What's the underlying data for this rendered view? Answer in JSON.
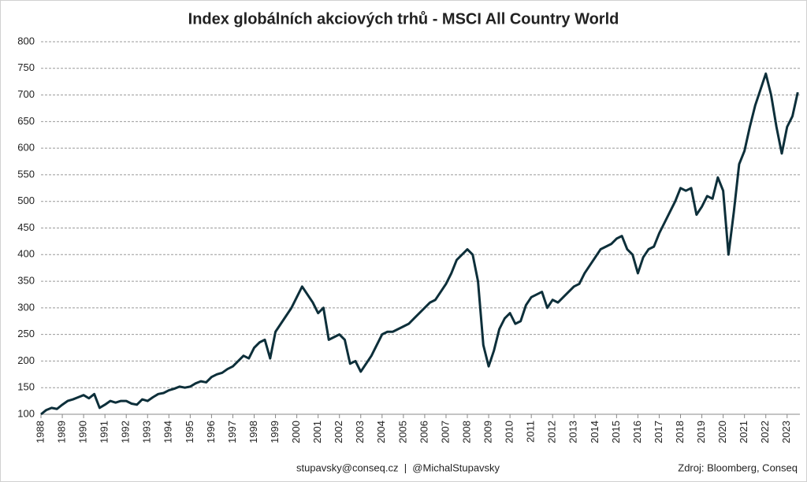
{
  "chart_data": {
    "type": "line",
    "title": "Index globálních akciových trhů - MSCI All Country World",
    "footer": "stupavsky@conseq.cz  |  @MichalStupavsky",
    "source": "Zdroj: Bloomberg, Conseq",
    "x": [
      1988,
      1988.25,
      1988.5,
      1988.75,
      1989,
      1989.25,
      1989.5,
      1989.75,
      1990,
      1990.25,
      1990.5,
      1990.75,
      1991,
      1991.25,
      1991.5,
      1991.75,
      1992,
      1992.25,
      1992.5,
      1992.75,
      1993,
      1993.25,
      1993.5,
      1993.75,
      1994,
      1994.25,
      1994.5,
      1994.75,
      1995,
      1995.25,
      1995.5,
      1995.75,
      1996,
      1996.25,
      1996.5,
      1996.75,
      1997,
      1997.25,
      1997.5,
      1997.75,
      1998,
      1998.25,
      1998.5,
      1998.75,
      1999,
      1999.25,
      1999.5,
      1999.75,
      2000,
      2000.25,
      2000.5,
      2000.75,
      2001,
      2001.25,
      2001.5,
      2001.75,
      2002,
      2002.25,
      2002.5,
      2002.75,
      2003,
      2003.25,
      2003.5,
      2003.75,
      2004,
      2004.25,
      2004.5,
      2004.75,
      2005,
      2005.25,
      2005.5,
      2005.75,
      2006,
      2006.25,
      2006.5,
      2006.75,
      2007,
      2007.25,
      2007.5,
      2007.75,
      2008,
      2008.25,
      2008.5,
      2008.75,
      2009,
      2009.25,
      2009.5,
      2009.75,
      2010,
      2010.25,
      2010.5,
      2010.75,
      2011,
      2011.25,
      2011.5,
      2011.75,
      2012,
      2012.25,
      2012.5,
      2012.75,
      2013,
      2013.25,
      2013.5,
      2013.75,
      2014,
      2014.25,
      2014.5,
      2014.75,
      2015,
      2015.25,
      2015.5,
      2015.75,
      2016,
      2016.25,
      2016.5,
      2016.75,
      2017,
      2017.25,
      2017.5,
      2017.75,
      2018,
      2018.25,
      2018.5,
      2018.75,
      2019,
      2019.25,
      2019.5,
      2019.75,
      2020,
      2020.25,
      2020.5,
      2020.75,
      2021,
      2021.25,
      2021.5,
      2021.75,
      2022,
      2022.25,
      2022.5,
      2022.75,
      2023,
      2023.25,
      2023.5
    ],
    "series": [
      {
        "color": "#0d2f3a",
        "values": [
          100,
          108,
          112,
          110,
          118,
          125,
          128,
          132,
          136,
          130,
          138,
          112,
          118,
          125,
          122,
          125,
          125,
          120,
          118,
          128,
          125,
          132,
          138,
          140,
          145,
          148,
          152,
          150,
          152,
          158,
          162,
          160,
          170,
          175,
          178,
          185,
          190,
          200,
          210,
          205,
          225,
          235,
          240,
          205,
          255,
          270,
          285,
          300,
          320,
          340,
          325,
          310,
          290,
          300,
          240,
          245,
          250,
          240,
          195,
          200,
          180,
          195,
          210,
          230,
          250,
          255,
          255,
          260,
          265,
          270,
          280,
          290,
          300,
          310,
          315,
          330,
          345,
          365,
          390,
          400,
          410,
          400,
          350,
          230,
          190,
          220,
          260,
          280,
          290,
          270,
          275,
          305,
          320,
          325,
          330,
          300,
          315,
          310,
          320,
          330,
          340,
          345,
          365,
          380,
          395,
          410,
          415,
          420,
          430,
          435,
          410,
          400,
          365,
          395,
          410,
          415,
          440,
          460,
          480,
          500,
          525,
          520,
          525,
          475,
          490,
          510,
          505,
          545,
          520,
          400,
          480,
          570,
          595,
          640,
          680,
          710,
          740,
          700,
          640,
          590,
          640,
          660,
          705
        ]
      }
    ],
    "xlim": [
      1988,
      2023.6
    ],
    "xticks": [
      1988,
      1989,
      1990,
      1991,
      1992,
      1993,
      1994,
      1995,
      1996,
      1997,
      1998,
      1999,
      2000,
      2001,
      2002,
      2003,
      2004,
      2005,
      2006,
      2007,
      2008,
      2009,
      2010,
      2011,
      2012,
      2013,
      2014,
      2015,
      2016,
      2017,
      2018,
      2019,
      2020,
      2021,
      2022,
      2023
    ],
    "ylim": [
      100,
      800
    ],
    "yticks": [
      100,
      150,
      200,
      250,
      300,
      350,
      400,
      450,
      500,
      550,
      600,
      650,
      700,
      750,
      800
    ],
    "grid": true
  }
}
